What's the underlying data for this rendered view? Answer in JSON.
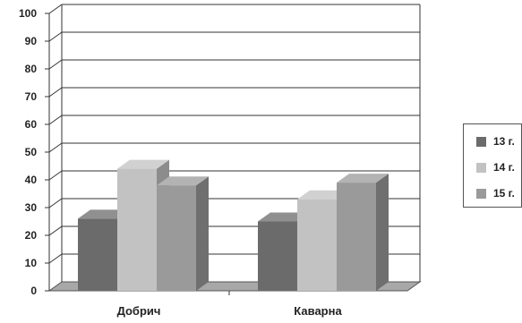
{
  "chart_data": {
    "type": "bar",
    "categories": [
      "Добрич",
      "Каварна"
    ],
    "series": [
      {
        "name": "13 г.",
        "values": [
          26,
          25
        ],
        "color": "#6b6b6b"
      },
      {
        "name": "14 г.",
        "values": [
          44,
          33
        ],
        "color": "#c2c2c2"
      },
      {
        "name": "15 г.",
        "values": [
          38,
          39
        ],
        "color": "#9a9a9a"
      }
    ],
    "ylim": [
      0,
      100
    ],
    "yticks": [
      "0",
      "10",
      "20",
      "30",
      "40",
      "50",
      "60",
      "70",
      "80",
      "90",
      "100"
    ],
    "grid": true,
    "style": "3d-clustered-column",
    "legend_position": "right"
  }
}
